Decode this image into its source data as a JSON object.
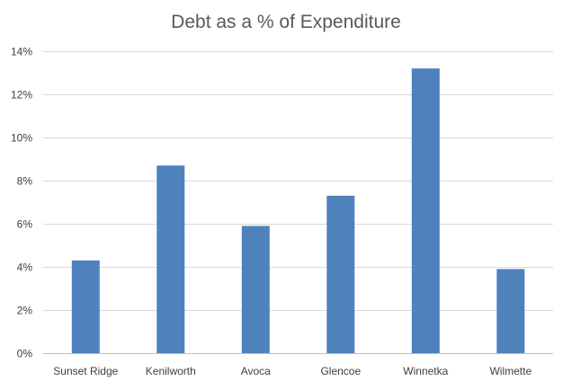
{
  "chart_data": {
    "type": "bar",
    "title": "Debt as a % of Expenditure",
    "xlabel": "",
    "ylabel": "",
    "categories": [
      "Sunset Ridge",
      "Kenilworth",
      "Avoca",
      "Glencoe",
      "Winnetka",
      "Wilmette"
    ],
    "values": [
      4.3,
      8.7,
      5.9,
      7.3,
      13.2,
      3.9
    ],
    "value_unit": "%",
    "ylim": [
      0,
      14
    ],
    "yticks": [
      "0%",
      "2%",
      "4%",
      "6%",
      "8%",
      "10%",
      "12%",
      "14%"
    ],
    "grid": true,
    "legend": "none"
  },
  "colors": {
    "bar": "#4f81bd",
    "grid": "#d9d9d9",
    "axis": "#bfbfbf",
    "title": "#595959",
    "tick": "#404040"
  }
}
